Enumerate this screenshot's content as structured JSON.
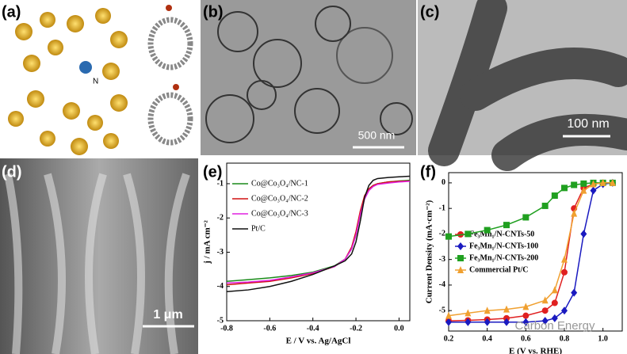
{
  "panels": {
    "labels": [
      "(a)",
      "(b)",
      "(c)",
      "(d)",
      "(e)",
      "(f)"
    ],
    "scale_bars": {
      "b": "500 nm",
      "c": "100 nm",
      "d": "1 μm"
    },
    "atom_label": "N"
  },
  "watermark": "Carbon Energy",
  "chart_data": [
    {
      "type": "line",
      "xlabel": "E / V vs. Ag/AgCl",
      "ylabel": "j / mA cm⁻²",
      "x": [
        -0.8,
        -0.7,
        -0.6,
        -0.5,
        -0.4,
        -0.3,
        -0.25,
        -0.22,
        -0.2,
        -0.18,
        -0.16,
        -0.14,
        -0.12,
        -0.1,
        -0.05,
        0,
        0.05
      ],
      "xlim": [
        -0.8,
        0.05
      ],
      "xticks": [
        -0.8,
        -0.6,
        -0.4,
        -0.2,
        {
          "value": 0,
          "label": "0.0"
        }
      ],
      "ylim": [
        -5,
        -0.4
      ],
      "yticks": [
        -5,
        -4,
        -3,
        -2,
        -1
      ],
      "legend": "upper left",
      "series": [
        {
          "name": "Co@Co₃O₄/NC-1",
          "color": "#1a8a1a",
          "values": [
            -3.85,
            -3.8,
            -3.75,
            -3.68,
            -3.58,
            -3.4,
            -3.2,
            -2.9,
            -2.5,
            -1.9,
            -1.4,
            -1.15,
            -1.05,
            -1,
            -0.95,
            -0.92,
            -0.9
          ]
        },
        {
          "name": "Co@Co₃O₄/NC-2",
          "color": "#d01010",
          "values": [
            -3.95,
            -3.9,
            -3.85,
            -3.75,
            -3.62,
            -3.42,
            -3.2,
            -2.85,
            -2.4,
            -1.8,
            -1.35,
            -1.15,
            -1.05,
            -1,
            -0.95,
            -0.93,
            -0.92
          ]
        },
        {
          "name": "Co@Co₃O₄/NC-3",
          "color": "#e020e0",
          "values": [
            -3.9,
            -3.87,
            -3.82,
            -3.72,
            -3.6,
            -3.42,
            -3.2,
            -2.9,
            -2.5,
            -1.9,
            -1.45,
            -1.2,
            -1.08,
            -1.02,
            -0.98,
            -0.95,
            -0.93
          ]
        },
        {
          "name": "Pt/C",
          "color": "#111111",
          "values": [
            -4.15,
            -4.1,
            -4,
            -3.85,
            -3.65,
            -3.4,
            -3.25,
            -3.05,
            -2.7,
            -2.1,
            -1.4,
            -1.05,
            -0.9,
            -0.85,
            -0.82,
            -0.8,
            -0.78
          ]
        }
      ]
    },
    {
      "type": "line",
      "xlabel": "E (V vs. RHE)",
      "ylabel": "Current Density (mA·cm⁻²)",
      "x": [
        0.2,
        0.3,
        0.4,
        0.5,
        0.6,
        0.7,
        0.75,
        0.8,
        0.85,
        0.9,
        0.95,
        1,
        1.05
      ],
      "xlim": [
        0.2,
        1.1
      ],
      "xticks": [
        0.2,
        0.4,
        0.6,
        0.8,
        {
          "value": 1,
          "label": "1.0"
        }
      ],
      "ylim": [
        -5.8,
        0.4
      ],
      "yticks": [
        -5,
        -4,
        -3,
        -2,
        -1,
        0
      ],
      "legend": "center left",
      "series": [
        {
          "name": "Fe₃Mn₁/N-CNTs-50",
          "color": "#e02020",
          "marker": "circle",
          "values": [
            -5.4,
            -5.38,
            -5.35,
            -5.3,
            -5.2,
            -5,
            -4.7,
            -3.5,
            -1,
            -0.2,
            -0.05,
            0,
            0
          ]
        },
        {
          "name": "Fe₃Mn₁/N-CNTs-100",
          "color": "#1a1ac0",
          "marker": "diamond",
          "values": [
            -5.45,
            -5.45,
            -5.45,
            -5.45,
            -5.45,
            -5.4,
            -5.3,
            -5,
            -4.3,
            -2,
            -0.3,
            -0.05,
            0
          ]
        },
        {
          "name": "Fe₃Mn₁/N-CNTs-200",
          "color": "#20a020",
          "marker": "square",
          "values": [
            -2.1,
            -2,
            -1.85,
            -1.65,
            -1.35,
            -0.9,
            -0.5,
            -0.2,
            -0.08,
            -0.03,
            0,
            0,
            0
          ]
        },
        {
          "name": "Commercial Pt/C",
          "color": "#f0a030",
          "marker": "triangle",
          "values": [
            -5.2,
            -5.1,
            -5,
            -4.95,
            -4.85,
            -4.6,
            -4.2,
            -3,
            -1.2,
            -0.3,
            -0.05,
            0,
            0
          ]
        }
      ]
    }
  ]
}
